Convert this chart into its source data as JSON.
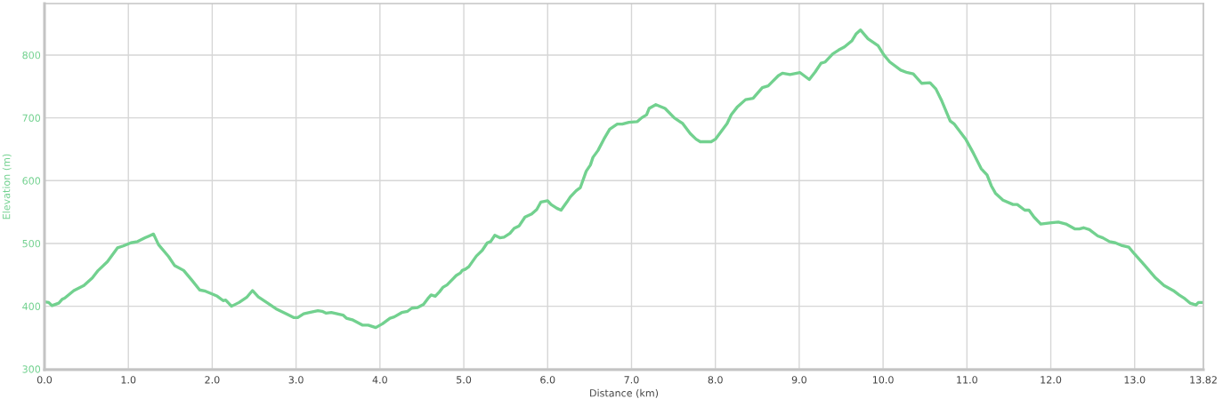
{
  "chart_data": {
    "type": "line",
    "xlabel": "Distance (km)",
    "ylabel": "Elevation (m)",
    "x": [
      0.0,
      0.05,
      0.09,
      0.17,
      0.21,
      0.24,
      0.35,
      0.47,
      0.57,
      0.64,
      0.75,
      0.87,
      0.94,
      1.03,
      1.11,
      1.2,
      1.25,
      1.3,
      1.36,
      1.48,
      1.55,
      1.66,
      1.76,
      1.85,
      1.92,
      2.01,
      2.06,
      2.13,
      2.16,
      2.23,
      2.32,
      2.41,
      2.48,
      2.55,
      2.65,
      2.76,
      2.88,
      2.97,
      3.02,
      3.09,
      3.16,
      3.26,
      3.31,
      3.36,
      3.42,
      3.49,
      3.56,
      3.6,
      3.68,
      3.79,
      3.86,
      3.95,
      4.03,
      4.12,
      4.17,
      4.26,
      4.33,
      4.38,
      4.45,
      4.52,
      4.57,
      4.61,
      4.66,
      4.71,
      4.75,
      4.8,
      4.91,
      4.96,
      4.98,
      5.02,
      5.06,
      5.15,
      5.22,
      5.28,
      5.32,
      5.37,
      5.43,
      5.48,
      5.55,
      5.6,
      5.66,
      5.73,
      5.81,
      5.87,
      5.92,
      6.0,
      6.04,
      6.11,
      6.16,
      6.23,
      6.27,
      6.34,
      6.39,
      6.46,
      6.51,
      6.54,
      6.6,
      6.67,
      6.74,
      6.83,
      6.89,
      6.97,
      7.07,
      7.12,
      7.18,
      7.21,
      7.29,
      7.4,
      7.51,
      7.61,
      7.7,
      7.77,
      7.82,
      7.95,
      8.0,
      8.14,
      8.19,
      8.26,
      8.36,
      8.45,
      8.56,
      8.63,
      8.75,
      8.8,
      8.89,
      9.01,
      9.12,
      9.19,
      9.26,
      9.31,
      9.4,
      9.47,
      9.54,
      9.63,
      9.68,
      9.73,
      9.82,
      9.94,
      10.01,
      10.08,
      10.21,
      10.29,
      10.36,
      10.46,
      10.56,
      10.63,
      10.7,
      10.8,
      10.85,
      10.99,
      11.08,
      11.17,
      11.24,
      11.29,
      11.34,
      11.43,
      11.55,
      11.6,
      11.69,
      11.74,
      11.8,
      11.88,
      12.01,
      12.09,
      12.18,
      12.29,
      12.34,
      12.39,
      12.46,
      12.56,
      12.62,
      12.7,
      12.77,
      12.84,
      12.93,
      13.0,
      13.12,
      13.25,
      13.35,
      13.46,
      13.53,
      13.6,
      13.66,
      13.73,
      13.76,
      13.82
    ],
    "series": [
      {
        "color": "#72d18f",
        "values": [
          407,
          406,
          401,
          405,
          411,
          413,
          425,
          433,
          445,
          457,
          471,
          493,
          496,
          501,
          503,
          509,
          512,
          515,
          498,
          479,
          465,
          457,
          441,
          426,
          424,
          419,
          416,
          409,
          410,
          400,
          406,
          414,
          425,
          415,
          406,
          396,
          388,
          382,
          382,
          388,
          390,
          393,
          392,
          389,
          390,
          388,
          386,
          381,
          378,
          370,
          370,
          366,
          372,
          381,
          383,
          390,
          392,
          397,
          398,
          403,
          412,
          418,
          416,
          423,
          430,
          434,
          449,
          453,
          457,
          459,
          463,
          480,
          489,
          501,
          503,
          513,
          509,
          510,
          516,
          524,
          528,
          542,
          547,
          554,
          566,
          568,
          562,
          556,
          553,
          566,
          574,
          584,
          589,
          615,
          625,
          637,
          648,
          666,
          682,
          690,
          690,
          693,
          694,
          700,
          705,
          715,
          721,
          715,
          700,
          691,
          675,
          666,
          662,
          662,
          666,
          691,
          705,
          717,
          729,
          731,
          748,
          751,
          767,
          771,
          769,
          772,
          761,
          773,
          787,
          789,
          802,
          808,
          813,
          823,
          834,
          840,
          826,
          815,
          800,
          789,
          776,
          772,
          770,
          755,
          756,
          746,
          727,
          695,
          690,
          665,
          643,
          619,
          609,
          592,
          580,
          569,
          562,
          562,
          553,
          553,
          542,
          531,
          533,
          534,
          531,
          523,
          523,
          525,
          522,
          512,
          509,
          503,
          501,
          497,
          494,
          483,
          465,
          445,
          433,
          425,
          418,
          412,
          405,
          402,
          406,
          406
        ]
      }
    ],
    "xlim": [
      0,
      13.82
    ],
    "ylim": [
      299,
      882
    ],
    "xticks": [
      {
        "value": 0,
        "label": "0.0"
      },
      {
        "value": 1,
        "label": "1.0"
      },
      {
        "value": 2,
        "label": "2.0"
      },
      {
        "value": 3,
        "label": "3.0"
      },
      {
        "value": 4,
        "label": "4.0"
      },
      {
        "value": 5,
        "label": "5.0"
      },
      {
        "value": 6,
        "label": "6.0"
      },
      {
        "value": 7,
        "label": "7.0"
      },
      {
        "value": 8,
        "label": "8.0"
      },
      {
        "value": 9,
        "label": "9.0"
      },
      {
        "value": 10,
        "label": "10.0"
      },
      {
        "value": 11,
        "label": "11.0"
      },
      {
        "value": 12,
        "label": "12.0"
      },
      {
        "value": 13,
        "label": "13.0"
      },
      13.82
    ],
    "yticks": [
      300,
      400,
      500,
      600,
      700,
      800
    ],
    "grid": true,
    "line_style": "solid"
  }
}
